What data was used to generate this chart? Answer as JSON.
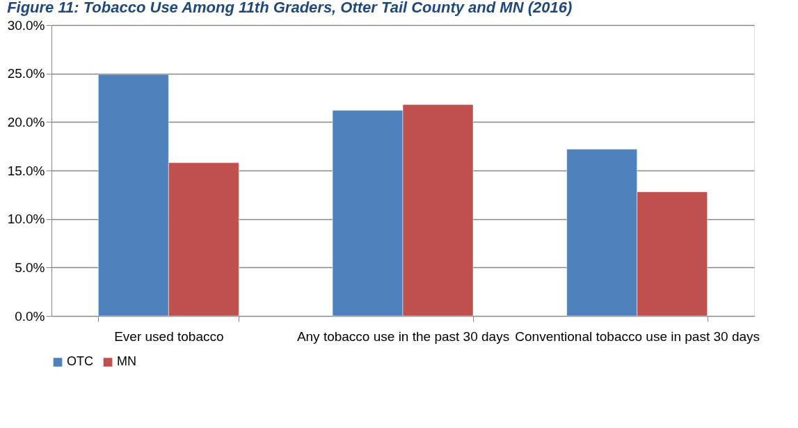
{
  "chart_data": {
    "type": "bar",
    "title": "Figure 11: Tobacco Use Among 11th Graders, Otter Tail County and MN (2016)",
    "categories": [
      "Ever used tobacco",
      "Any tobacco use in the past 30 days",
      "Conventional tobacco use in past 30 days"
    ],
    "series": [
      {
        "name": "OTC",
        "color": "#4f81bd",
        "values": [
          24.9,
          21.2,
          17.2
        ]
      },
      {
        "name": "MN",
        "color": "#c0504d",
        "values": [
          15.8,
          21.8,
          12.8
        ]
      }
    ],
    "ylim": [
      0,
      30
    ],
    "yticks": [
      {
        "value": 0,
        "label": "0.0%"
      },
      {
        "value": 5,
        "label": "5.0%"
      },
      {
        "value": 10,
        "label": "10.0%"
      },
      {
        "value": 15,
        "label": "15.0%"
      },
      {
        "value": 20,
        "label": "20.0%"
      },
      {
        "value": 25,
        "label": "25.0%"
      },
      {
        "value": 30,
        "label": "30.0%"
      }
    ],
    "grid": "y",
    "legend": "bottom"
  }
}
